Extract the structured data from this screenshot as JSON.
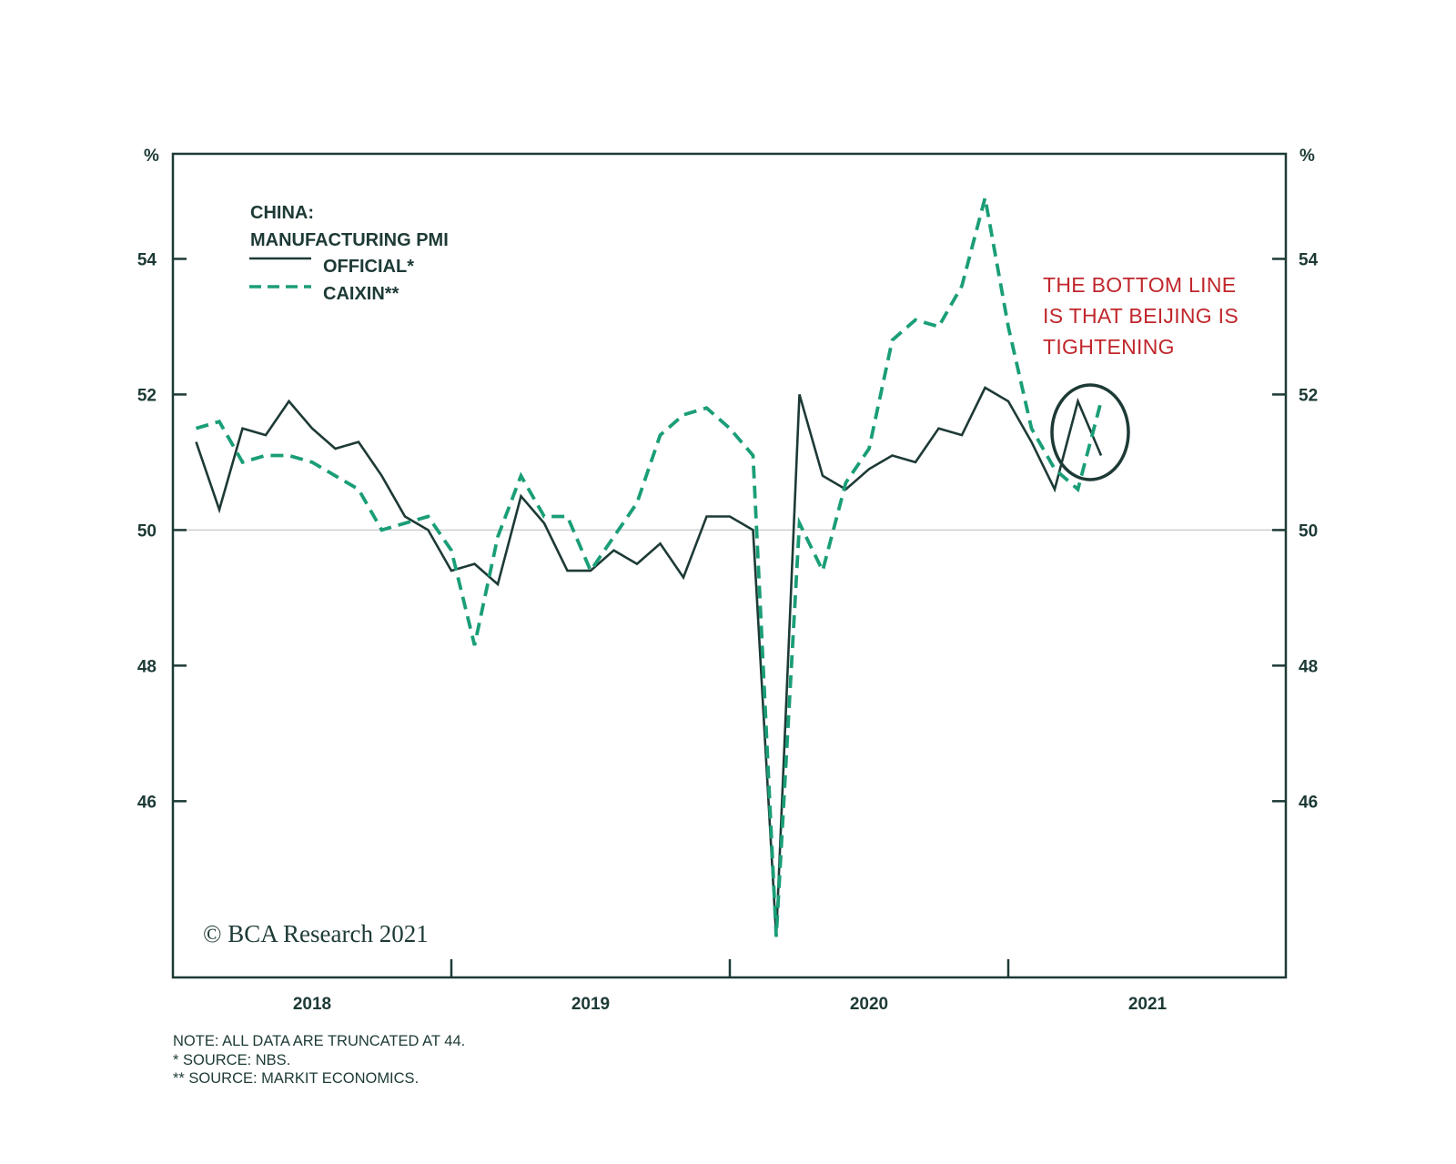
{
  "chart_data": {
    "type": "line",
    "title": "CHINA: MANUFACTURING PMI",
    "ylabel_left": "%",
    "ylabel_right": "%",
    "ylim": [
      43.4,
      55.55
    ],
    "yticks": [
      46,
      48,
      50,
      52,
      54
    ],
    "reference_line": 50,
    "x_tick_labels": [
      "2018",
      "2019",
      "2020",
      "2021"
    ],
    "x": [
      "2018-01",
      "2018-02",
      "2018-03",
      "2018-04",
      "2018-05",
      "2018-06",
      "2018-07",
      "2018-08",
      "2018-09",
      "2018-10",
      "2018-11",
      "2018-12",
      "2019-01",
      "2019-02",
      "2019-03",
      "2019-04",
      "2019-05",
      "2019-06",
      "2019-07",
      "2019-08",
      "2019-09",
      "2019-10",
      "2019-11",
      "2019-12",
      "2020-01",
      "2020-02",
      "2020-03",
      "2020-04",
      "2020-05",
      "2020-06",
      "2020-07",
      "2020-08",
      "2020-09",
      "2020-10",
      "2020-11",
      "2020-12",
      "2021-01",
      "2021-02",
      "2021-03",
      "2021-04"
    ],
    "series": [
      {
        "name": "OFFICIAL*",
        "style": "solid",
        "color": "#1d3a36",
        "values": [
          51.3,
          50.3,
          51.5,
          51.4,
          51.9,
          51.5,
          51.2,
          51.3,
          50.8,
          50.2,
          50.0,
          49.4,
          49.5,
          49.2,
          50.5,
          50.1,
          49.4,
          49.4,
          49.7,
          49.5,
          49.8,
          49.3,
          50.2,
          50.2,
          50.0,
          44.0,
          52.0,
          50.8,
          50.6,
          50.9,
          51.1,
          51.0,
          51.5,
          51.4,
          52.1,
          51.9,
          51.3,
          50.6,
          51.9,
          51.1
        ]
      },
      {
        "name": "CAIXIN**",
        "style": "dashed",
        "color": "#1a9e77",
        "values": [
          51.5,
          51.6,
          51.0,
          51.1,
          51.1,
          51.0,
          50.8,
          50.6,
          50.0,
          50.1,
          50.2,
          49.7,
          48.3,
          49.9,
          50.8,
          50.2,
          50.2,
          49.4,
          49.9,
          50.4,
          51.4,
          51.7,
          51.8,
          51.5,
          51.1,
          44.0,
          50.1,
          49.4,
          50.7,
          51.2,
          52.8,
          53.1,
          53.0,
          53.6,
          54.9,
          53.0,
          51.5,
          50.9,
          50.6,
          51.9
        ]
      }
    ],
    "legend_title": [
      "CHINA:",
      "MANUFACTURING PMI"
    ],
    "legend_placement": "top-left",
    "annotation": [
      "THE BOTTOM LINE",
      "IS THAT BEIJING IS",
      "TIGHTENING"
    ],
    "annotation_color": "#c0262b",
    "copyright": "© BCA Research 2021",
    "notes": [
      "NOTE: ALL DATA ARE TRUNCATED AT 44.",
      "*  SOURCE: NBS.",
      "** SOURCE: MARKIT ECONOMICS."
    ]
  }
}
